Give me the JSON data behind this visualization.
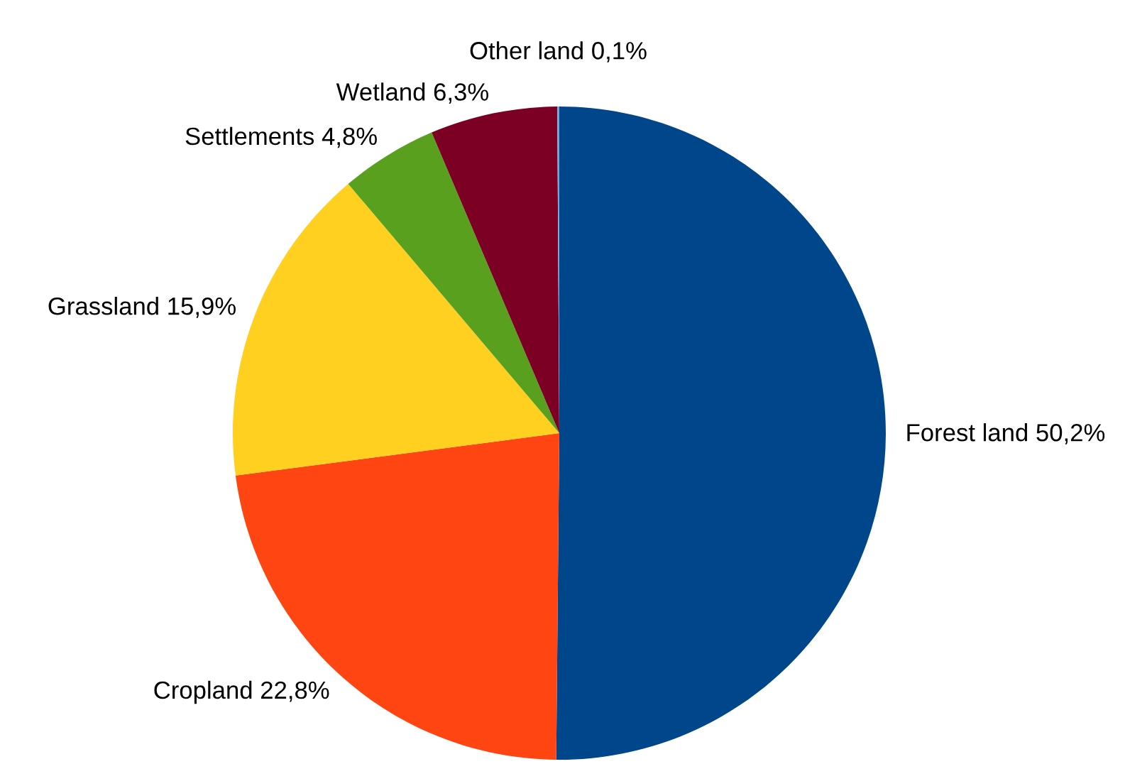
{
  "chart_data": {
    "type": "pie",
    "categories": [
      "Forest land",
      "Cropland",
      "Grassland",
      "Settlements",
      "Wetland",
      "Other land"
    ],
    "values": [
      50.2,
      22.8,
      15.9,
      4.8,
      6.3,
      0.1
    ],
    "value_labels": [
      "50,2%",
      "22,8%",
      "15,9%",
      "4,8%",
      "6,3%",
      "0,1%"
    ],
    "colors": [
      "#00468b",
      "#ff4512",
      "#ffd020",
      "#58a01e",
      "#7b0023",
      "#6fa8dc"
    ],
    "legend": false
  }
}
